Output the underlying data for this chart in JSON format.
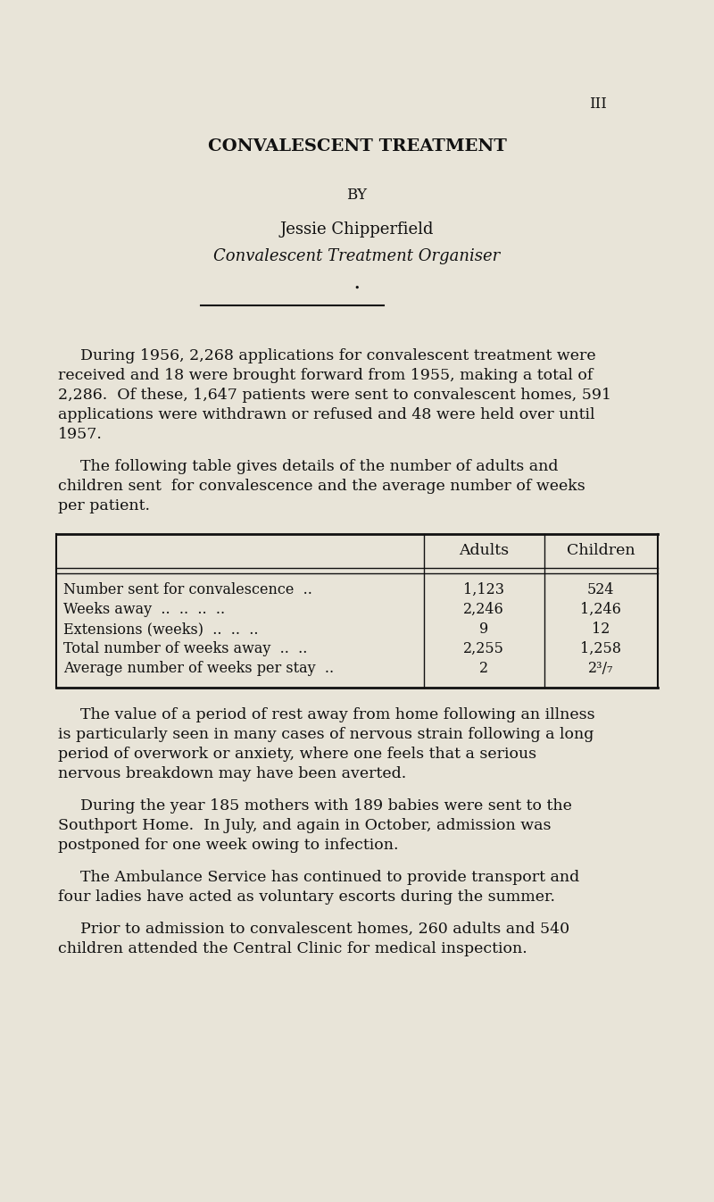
{
  "background_color": "#e8e4d8",
  "page_number": "III",
  "title": "CONVALESCENT TREATMENT",
  "by": "BY",
  "author": "Jessie Chipperfield",
  "author_italic": "Convalescent Treatment Organiser",
  "table_col_headers": [
    "Adults",
    "Children"
  ],
  "table_rows": [
    [
      "Number sent for convalescence  ..",
      "1,123",
      "524"
    ],
    [
      "Weeks away  ..  ..  ..  ..",
      "2,246",
      "1,246"
    ],
    [
      "Extensions (weeks)  ..  ..  ..",
      "9",
      "12"
    ],
    [
      "Total number of weeks away  ..  ..",
      "2,255",
      "1,258"
    ],
    [
      "Average number of weeks per stay  ..",
      "2",
      "2³/₇"
    ]
  ],
  "para1_lines": [
    "During 1956, 2,268 applications for convalescent treatment were",
    "received and 18 were brought forward from 1955, making a total of",
    "2,286.  Of these, 1,647 patients were sent to convalescent homes, 591",
    "applications were withdrawn or refused and 48 were held over until",
    "1957."
  ],
  "para2_lines": [
    "The following table gives details of the number of adults and",
    "children sent  for convalescence and the average number of weeks",
    "per patient."
  ],
  "para3_lines": [
    "The value of a period of rest away from home following an illness",
    "is particularly seen in many cases of nervous strain following a long",
    "period of overwork or anxiety, where one feels that a serious",
    "nervous breakdown may have been averted."
  ],
  "para4_lines": [
    "During the year 185 mothers with 189 babies were sent to the",
    "Southport Home.  In July, and again in October, admission was",
    "postponed for one week owing to infection."
  ],
  "para5_lines": [
    "The Ambulance Service has continued to provide transport and",
    "four ladies have acted as voluntary escorts during the summer."
  ],
  "para6_lines": [
    "Prior to admission to convalescent homes, 260 adults and 540",
    "children attended the Central Clinic for medical inspection."
  ],
  "text_color": "#111111",
  "fig_width": 8.0,
  "fig_height": 13.46,
  "dpi": 100
}
